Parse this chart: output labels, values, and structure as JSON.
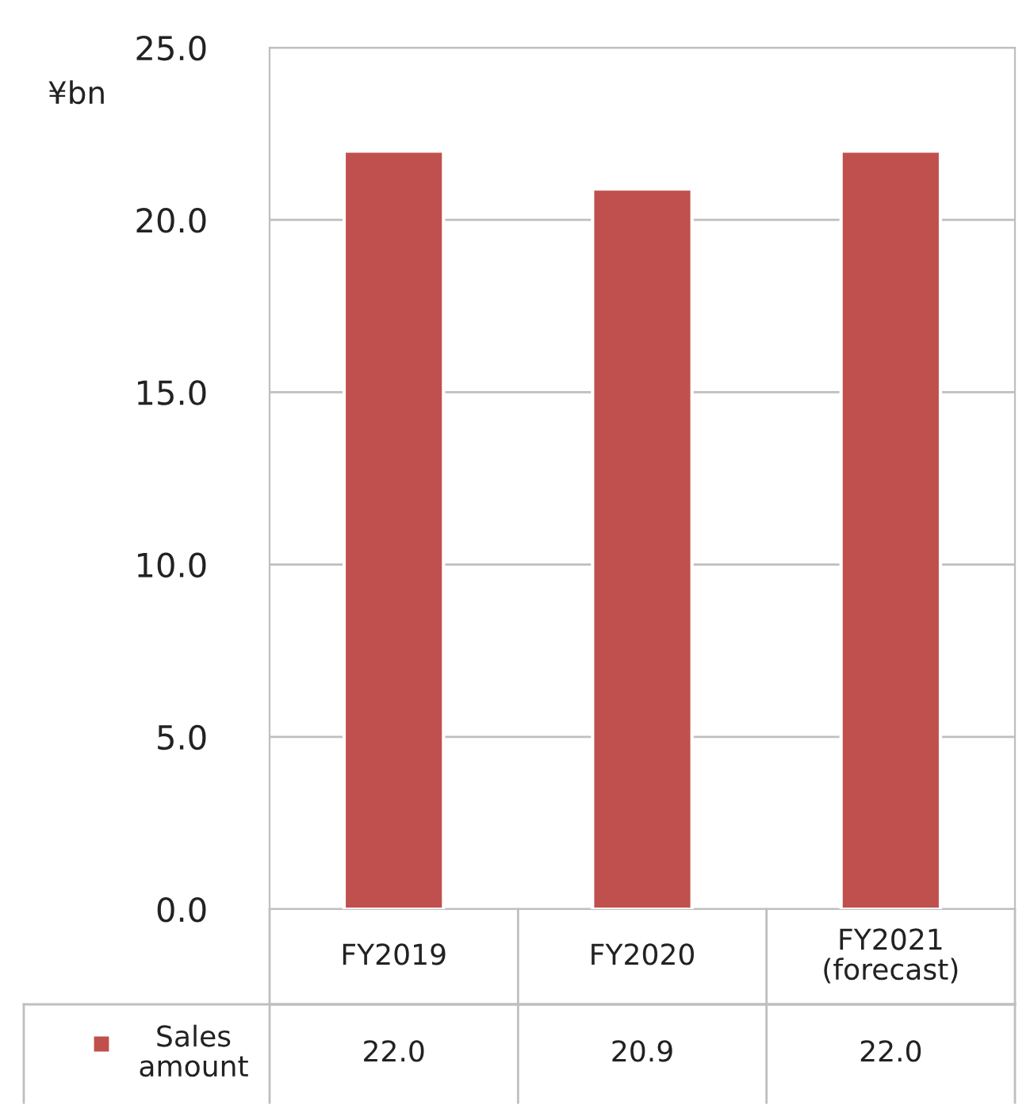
{
  "chart_data": {
    "type": "bar",
    "ylabel": "¥bn",
    "categories": [
      "FY2019",
      "FY2020",
      "FY2021\n(forecast)"
    ],
    "series": [
      {
        "name": "Sales amount",
        "color": "#c0504d",
        "values": [
          22.0,
          20.9,
          22.0
        ],
        "value_labels": [
          "22.0",
          "20.9",
          "22.0"
        ]
      }
    ],
    "ylim": [
      0,
      25
    ],
    "yticks": [
      {
        "value": 0,
        "label": "0.0"
      },
      {
        "value": 5,
        "label": "5.0"
      },
      {
        "value": 10,
        "label": "10.0"
      },
      {
        "value": 15,
        "label": "15.0"
      },
      {
        "value": 20,
        "label": "20.0"
      },
      {
        "value": 25,
        "label": "25.0"
      }
    ],
    "grid": "y",
    "legend": "bottom left"
  }
}
